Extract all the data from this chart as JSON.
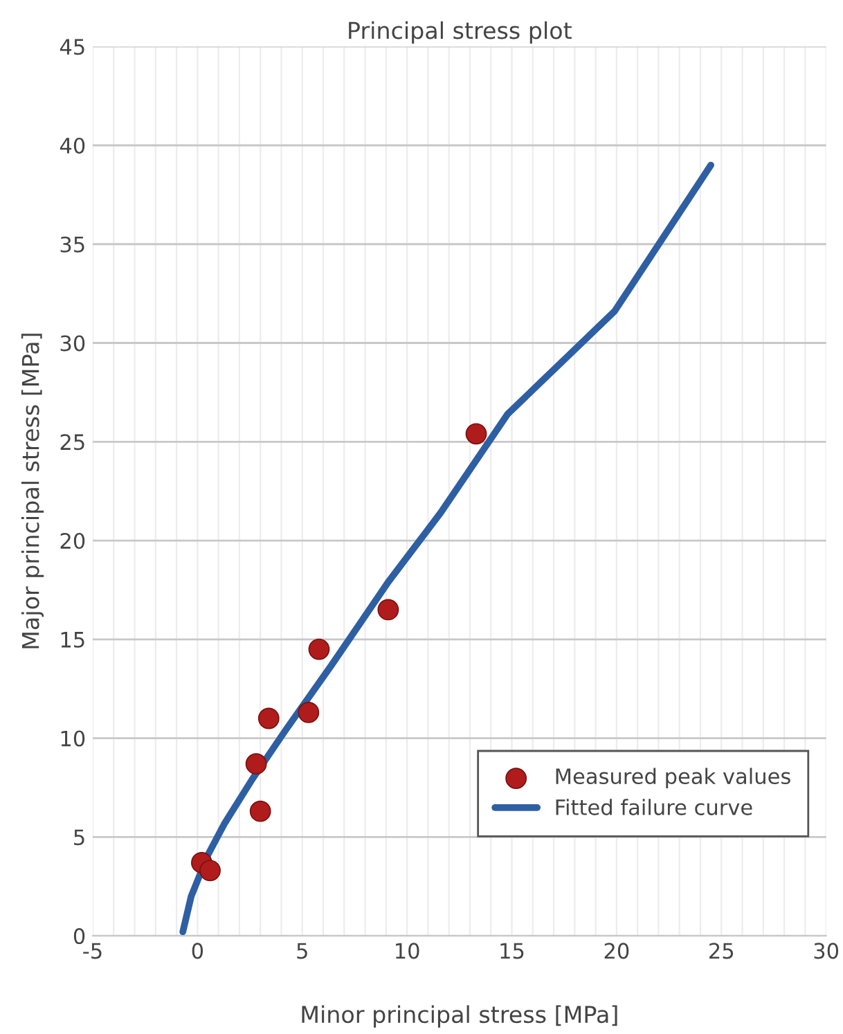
{
  "chart_data": {
    "type": "scatter",
    "title": "Principal stress plot",
    "xlabel": "Minor principal stress [MPa]",
    "ylabel": "Major principal stress [MPa]",
    "series": [
      {
        "name": "Measured peak values",
        "color": "#b01c1c",
        "marker": "circle",
        "x": [
          0.2,
          0.6,
          2.8,
          3.0,
          3.4,
          5.3,
          5.8,
          9.1,
          13.3
        ],
        "values": [
          3.7,
          3.3,
          8.7,
          6.3,
          11.0,
          11.3,
          14.5,
          16.5,
          25.4
        ]
      },
      {
        "name": "Fitted failure curve",
        "type": "line",
        "color": "#2e5fa3",
        "line_style": "solid",
        "x": [
          -0.7,
          -0.3,
          0.5,
          1.3,
          2.6,
          4.2,
          6.4,
          9.1,
          11.6,
          14.8,
          19.9,
          24.5
        ],
        "values": [
          0.2,
          2.0,
          4.1,
          5.7,
          7.9,
          10.4,
          13.7,
          17.9,
          21.4,
          26.4,
          31.6,
          39.0
        ]
      }
    ],
    "xlim": [
      -5,
      30
    ],
    "ylim": [
      0,
      45
    ],
    "xticks": [
      -5,
      {
        "value": -4,
        "label": null
      },
      {
        "value": -3,
        "label": null
      },
      {
        "value": -2,
        "label": null
      },
      {
        "value": -1,
        "label": null
      },
      0,
      {
        "value": 1,
        "label": null
      },
      {
        "value": 2,
        "label": null
      },
      {
        "value": 3,
        "label": null
      },
      {
        "value": 4,
        "label": null
      },
      5,
      {
        "value": 6,
        "label": null
      },
      {
        "value": 7,
        "label": null
      },
      {
        "value": 8,
        "label": null
      },
      {
        "value": 9,
        "label": null
      },
      10,
      {
        "value": 11,
        "label": null
      },
      {
        "value": 12,
        "label": null
      },
      {
        "value": 13,
        "label": null
      },
      {
        "value": 14,
        "label": null
      },
      15,
      {
        "value": 16,
        "label": null
      },
      {
        "value": 17,
        "label": null
      },
      {
        "value": 18,
        "label": null
      },
      {
        "value": 19,
        "label": null
      },
      20,
      {
        "value": 21,
        "label": null
      },
      {
        "value": 22,
        "label": null
      },
      {
        "value": 23,
        "label": null
      },
      {
        "value": 24,
        "label": null
      },
      25,
      {
        "value": 26,
        "label": null
      },
      {
        "value": 27,
        "label": null
      },
      {
        "value": 28,
        "label": null
      },
      {
        "value": 29,
        "label": null
      },
      30
    ],
    "yticks": [
      0,
      5,
      10,
      15,
      20,
      25,
      30,
      35,
      40,
      45
    ],
    "grid": true,
    "legend": "bottom right"
  }
}
